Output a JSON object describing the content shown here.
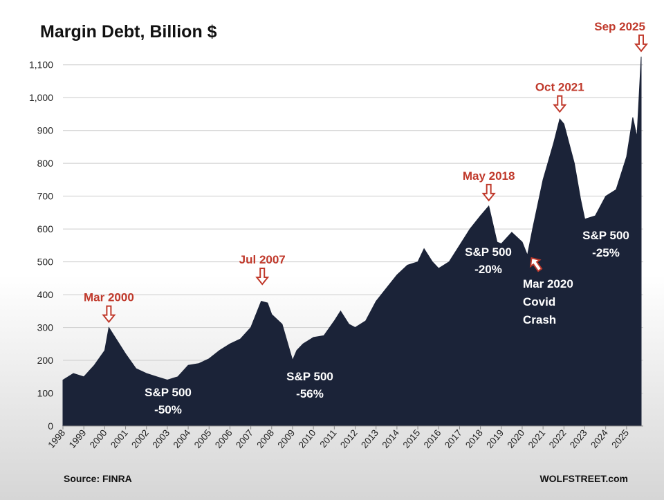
{
  "chart_data": {
    "type": "area",
    "title": "Margin Debt, Billion $",
    "xlabel": "",
    "ylabel": "",
    "ylim": [
      0,
      1150
    ],
    "grid": true,
    "y_ticks": [
      "0",
      "100",
      "200",
      "300",
      "400",
      "500",
      "600",
      "700",
      "800",
      "900",
      "1,000",
      "1,100"
    ],
    "x_ticks": [
      "1998",
      "1999",
      "2000",
      "2001",
      "2002",
      "2003",
      "2004",
      "2005",
      "2006",
      "2007",
      "2008",
      "2009",
      "2010",
      "2011",
      "2012",
      "2013",
      "2014",
      "2015",
      "2016",
      "2017",
      "2018",
      "2019",
      "2020",
      "2021",
      "2022",
      "2023",
      "2024",
      "2025"
    ],
    "x": [
      1998.0,
      1998.5,
      1999.0,
      1999.5,
      2000.0,
      2000.2,
      2000.5,
      2001.0,
      2001.5,
      2002.0,
      2002.5,
      2003.0,
      2003.5,
      2004.0,
      2004.5,
      2005.0,
      2005.5,
      2006.0,
      2006.5,
      2007.0,
      2007.5,
      2007.8,
      2008.0,
      2008.5,
      2009.0,
      2009.2,
      2009.5,
      2010.0,
      2010.5,
      2011.0,
      2011.3,
      2011.7,
      2012.0,
      2012.5,
      2013.0,
      2013.5,
      2014.0,
      2014.5,
      2015.0,
      2015.3,
      2015.7,
      2016.0,
      2016.5,
      2017.0,
      2017.5,
      2018.0,
      2018.4,
      2018.8,
      2019.0,
      2019.5,
      2020.0,
      2020.25,
      2020.5,
      2021.0,
      2021.5,
      2021.8,
      2022.0,
      2022.5,
      2022.8,
      2023.0,
      2023.5,
      2024.0,
      2024.5,
      2025.0,
      2025.3,
      2025.5,
      2025.7
    ],
    "values": [
      140,
      160,
      150,
      185,
      230,
      300,
      270,
      220,
      175,
      160,
      150,
      140,
      150,
      185,
      190,
      205,
      230,
      250,
      265,
      300,
      380,
      375,
      340,
      310,
      200,
      230,
      250,
      270,
      275,
      320,
      350,
      310,
      300,
      320,
      380,
      420,
      460,
      490,
      500,
      540,
      500,
      480,
      500,
      550,
      600,
      640,
      670,
      560,
      555,
      590,
      560,
      520,
      600,
      750,
      860,
      935,
      920,
      800,
      690,
      630,
      640,
      700,
      720,
      820,
      940,
      880,
      1125
    ],
    "annotations": [
      {
        "label": "Mar 2000",
        "x": 2000.2,
        "value": 300
      },
      {
        "label": "Jul 2007",
        "x": 2007.55,
        "value": 415
      },
      {
        "label": "May 2018",
        "x": 2018.4,
        "value": 670
      },
      {
        "label": "Oct 2021",
        "x": 2021.8,
        "value": 940
      },
      {
        "label": "Sep 2025",
        "x": 2025.7,
        "value": 1125
      }
    ],
    "notes": [
      {
        "line1": "S&P 500",
        "line2": "-50%"
      },
      {
        "line1": "S&P 500",
        "line2": "-56%"
      },
      {
        "line1": "S&P 500",
        "line2": "-20%"
      },
      {
        "line1": "S&P 500",
        "line2": "-25%"
      }
    ],
    "covid_note": [
      "Mar 2020",
      "Covid",
      "Crash"
    ],
    "colors": {
      "area": "#1b2338",
      "annotation": "#c0392b",
      "grid": "#cccccc"
    }
  },
  "footer": {
    "source": "Source: FINRA",
    "brand": "WOLFSTREET.com"
  }
}
